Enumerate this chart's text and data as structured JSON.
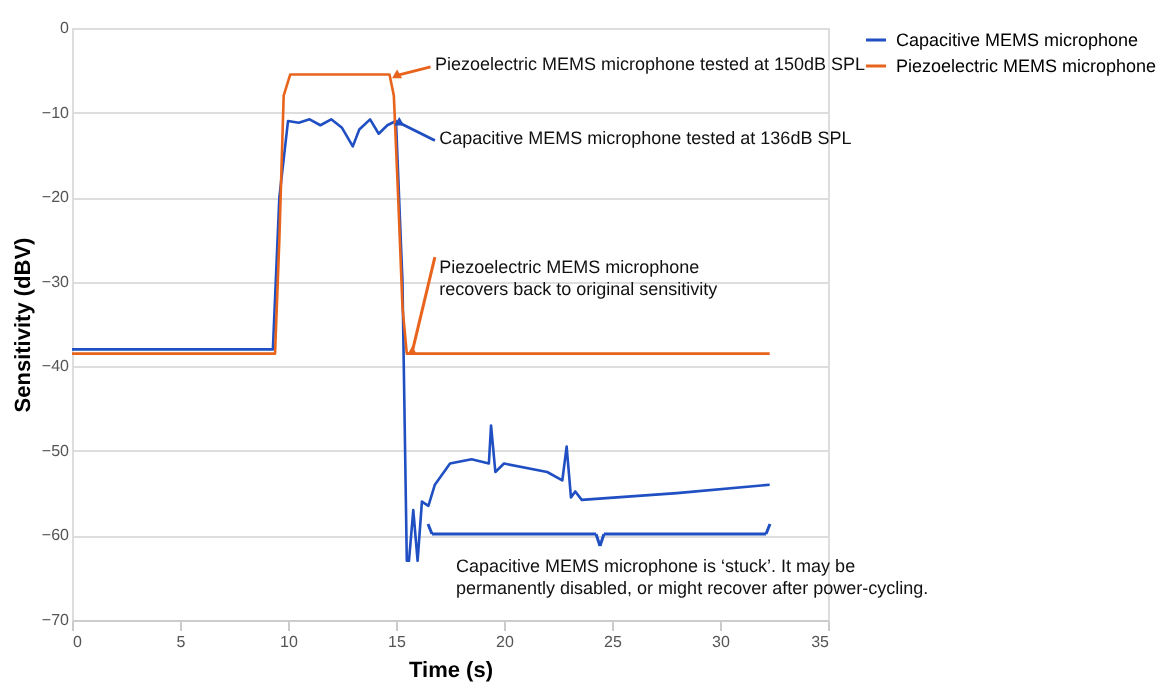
{
  "chart_data": {
    "type": "line",
    "xlabel": "Time (s)",
    "ylabel": "Sensitivity (dBV)",
    "xlim": [
      0,
      35
    ],
    "xticks": [
      0,
      5,
      10,
      15,
      20,
      25,
      30,
      35
    ],
    "ylim": [
      -70,
      0
    ],
    "yticks": [
      0,
      -10,
      -20,
      -30,
      -40,
      -50,
      -60,
      -70
    ],
    "grid": "y",
    "legend": "right",
    "series": [
      {
        "name": "Capacitive MEMS microphone",
        "color": "#1f4fc2",
        "x": [
          0,
          9.3,
          9.6,
          10.0,
          10.5,
          11.0,
          11.5,
          12.0,
          12.5,
          13.0,
          13.3,
          13.8,
          14.2,
          14.6,
          15.0,
          15.3,
          15.5,
          15.6,
          15.8,
          16.0,
          16.2,
          16.5,
          16.8,
          17.5,
          18.5,
          19.3,
          19.4,
          19.6,
          20.0,
          22.0,
          22.7,
          22.9,
          23.1,
          23.3,
          23.6,
          28.0,
          32.3
        ],
        "values": [
          -38,
          -38,
          -20,
          -11,
          -11.2,
          -10.8,
          -11.5,
          -10.8,
          -11.8,
          -14,
          -12,
          -10.8,
          -12.5,
          -11.5,
          -11,
          -30,
          -63,
          -63,
          -57,
          -63,
          -56,
          -56.5,
          -54,
          -51.5,
          -51,
          -51.5,
          -47,
          -52.5,
          -51.5,
          -52.5,
          -53.5,
          -49.5,
          -55.5,
          -54.8,
          -55.8,
          -55,
          -54
        ]
      },
      {
        "name": "Piezoelectric MEMS microphone",
        "color": "#e8631c",
        "x": [
          0,
          9.4,
          9.6,
          9.8,
          10.1,
          14.7,
          14.9,
          15.1,
          15.3,
          15.5,
          32.3
        ],
        "values": [
          -38.5,
          -38.5,
          -25,
          -8,
          -5.5,
          -5.5,
          -8,
          -20,
          -33,
          -38.5,
          -38.5
        ]
      }
    ],
    "annotations": [
      {
        "text": "Piezoelectric MEMS microphone tested at 150dB SPL",
        "x": 14.9,
        "y": -5.6
      },
      {
        "text": "Capacitive MEMS microphone tested at 136dB SPL",
        "x": 15.0,
        "y": -11.2
      },
      {
        "text": "Piezoelectric MEMS microphone\nrecovers back to original sensitivity",
        "x": 15.6,
        "y": -38.3
      },
      "Capacitive MEMS microphone is ‘stuck’. It may be\npermanently disabled, or might recover after power-cycling."
    ]
  }
}
